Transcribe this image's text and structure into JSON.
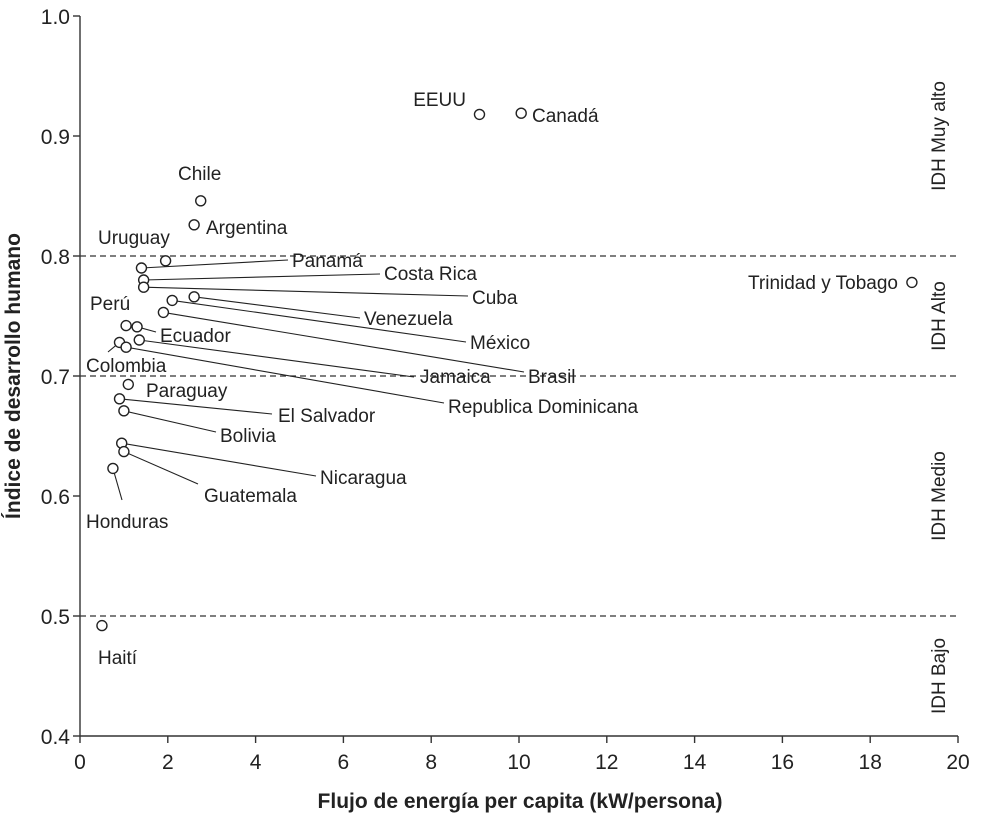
{
  "chart_data": {
    "type": "scatter",
    "title": "",
    "xlabel": "Flujo de energía per capita (kW/persona)",
    "ylabel": "Índice de desarrollo humano",
    "xlim": [
      0,
      20
    ],
    "ylim": [
      0.4,
      1.0
    ],
    "x_ticks": [
      "0",
      "2",
      "4",
      "6",
      "8",
      "10",
      "12",
      "14",
      "16",
      "18",
      "20"
    ],
    "y_ticks": [
      "0.4",
      "0.5",
      "0.6",
      "0.7",
      "0.8",
      "0.9",
      "1.0"
    ],
    "grid": false,
    "reference_lines": [
      0.5,
      0.7,
      0.8
    ],
    "bands": [
      {
        "label": "IDH Muy alto",
        "ymin": 0.8,
        "ymax": 1.0
      },
      {
        "label": "IDH Alto",
        "ymin": 0.7,
        "ymax": 0.8
      },
      {
        "label": "IDH Medio",
        "ymin": 0.5,
        "ymax": 0.7
      },
      {
        "label": "IDH Bajo",
        "ymin": 0.4,
        "ymax": 0.5
      }
    ],
    "points": [
      {
        "label": "EEUU",
        "x": 9.1,
        "y": 0.918
      },
      {
        "label": "Canadá",
        "x": 10.05,
        "y": 0.919
      },
      {
        "label": "Chile",
        "x": 2.75,
        "y": 0.846
      },
      {
        "label": "Argentina",
        "x": 2.6,
        "y": 0.826
      },
      {
        "label": "Uruguay",
        "x": 1.95,
        "y": 0.796
      },
      {
        "label": "Panamá",
        "x": 1.4,
        "y": 0.79
      },
      {
        "label": "Costa Rica",
        "x": 1.45,
        "y": 0.78
      },
      {
        "label": "Cuba",
        "x": 1.45,
        "y": 0.774
      },
      {
        "label": "Trinidad y Tobago",
        "x": 18.95,
        "y": 0.778
      },
      {
        "label": "Venezuela",
        "x": 2.6,
        "y": 0.766
      },
      {
        "label": "México",
        "x": 2.1,
        "y": 0.763
      },
      {
        "label": "Brasil",
        "x": 1.9,
        "y": 0.753
      },
      {
        "label": "Perú",
        "x": 1.05,
        "y": 0.742
      },
      {
        "label": "Ecuador",
        "x": 1.3,
        "y": 0.741
      },
      {
        "label": "Jamaica",
        "x": 1.35,
        "y": 0.73
      },
      {
        "label": "Colombia",
        "x": 0.9,
        "y": 0.728
      },
      {
        "label": "Republica Dominicana",
        "x": 1.05,
        "y": 0.724
      },
      {
        "label": "Paraguay",
        "x": 1.1,
        "y": 0.693
      },
      {
        "label": "El Salvador",
        "x": 0.9,
        "y": 0.681
      },
      {
        "label": "Bolivia",
        "x": 1.0,
        "y": 0.671
      },
      {
        "label": "Nicaragua",
        "x": 0.95,
        "y": 0.644
      },
      {
        "label": "Guatemala",
        "x": 1.0,
        "y": 0.637
      },
      {
        "label": "Honduras",
        "x": 0.75,
        "y": 0.623
      },
      {
        "label": "Haití",
        "x": 0.5,
        "y": 0.492
      }
    ]
  }
}
